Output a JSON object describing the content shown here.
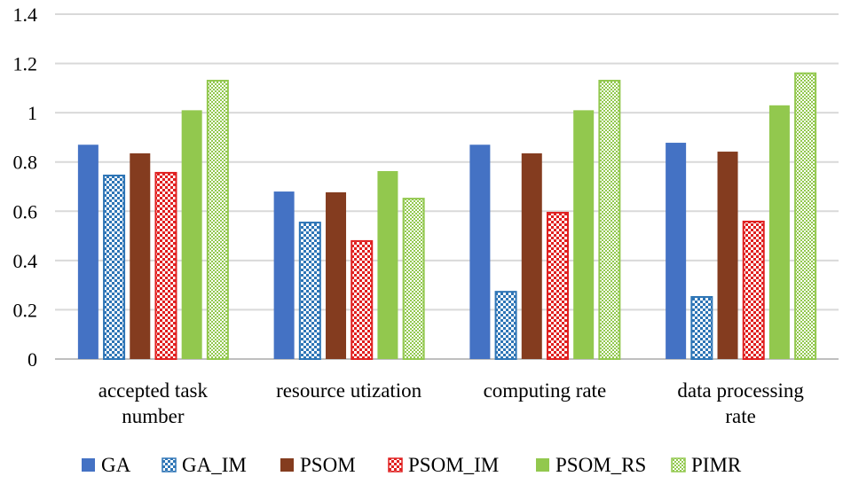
{
  "chart_data": {
    "type": "bar",
    "title": "",
    "xlabel": "",
    "ylabel": "",
    "ylim": [
      0,
      1.4
    ],
    "yticks": [
      "0",
      "0.2",
      "0.4",
      "0.6",
      "0.8",
      "1",
      "1.2",
      "1.4"
    ],
    "grid": true,
    "legend_placement": "bottom",
    "categories": [
      [
        "accepted task",
        "number"
      ],
      [
        "resource utization"
      ],
      [
        "computing rate"
      ],
      [
        "data processing",
        "rate"
      ]
    ],
    "series": [
      {
        "name": "GA",
        "color": "#4472C4",
        "pattern": "solid",
        "values": [
          0.87,
          0.68,
          0.87,
          0.878
        ]
      },
      {
        "name": "GA_IM",
        "color": "#2E75B6",
        "pattern": "checker",
        "values": [
          0.745,
          0.554,
          0.273,
          0.252
        ]
      },
      {
        "name": "PSOM",
        "color": "#843C1F",
        "pattern": "solid",
        "values": [
          0.835,
          0.677,
          0.835,
          0.842
        ]
      },
      {
        "name": "PSOM_IM",
        "color": "#E02020",
        "pattern": "checker",
        "values": [
          0.756,
          0.479,
          0.594,
          0.558
        ]
      },
      {
        "name": "PSOM_RS",
        "color": "#92C84E",
        "pattern": "solid",
        "values": [
          1.01,
          0.763,
          1.01,
          1.03
        ]
      },
      {
        "name": "PIMR",
        "color": "#92C84E",
        "pattern": "fine-checker",
        "values": [
          1.13,
          0.651,
          1.13,
          1.16
        ]
      }
    ]
  }
}
